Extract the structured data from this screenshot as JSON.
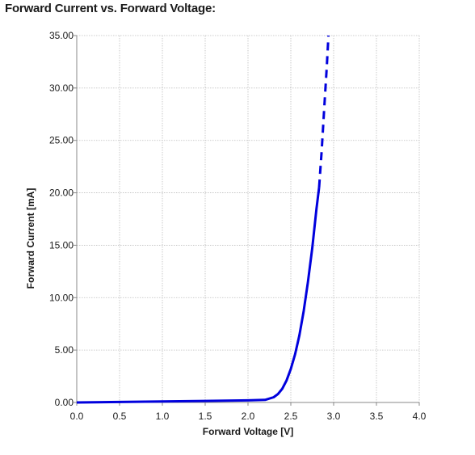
{
  "chart_data": {
    "type": "line",
    "title": "Forward Current vs. Forward Voltage:",
    "xlabel": "Forward Voltage [V]",
    "ylabel": "Forward Current [mA]",
    "xlim": [
      0,
      4.0
    ],
    "ylim": [
      0,
      35
    ],
    "x_ticks": [
      "0.0",
      "0.5",
      "1.0",
      "1.5",
      "2.0",
      "2.5",
      "3.0",
      "3.5",
      "4.0"
    ],
    "y_ticks": [
      "0.00",
      "5.00",
      "10.00",
      "15.00",
      "20.00",
      "25.00",
      "30.00",
      "35.00"
    ],
    "grid": true,
    "series": [
      {
        "style": "solid",
        "color": "#0000dd",
        "x": [
          0.0,
          0.5,
          1.0,
          1.5,
          2.0,
          2.2,
          2.3,
          2.35,
          2.4,
          2.45,
          2.5,
          2.55,
          2.6,
          2.65,
          2.7,
          2.75,
          2.8,
          2.83
        ],
        "y": [
          0.0,
          0.05,
          0.1,
          0.15,
          0.2,
          0.25,
          0.5,
          0.8,
          1.3,
          2.1,
          3.2,
          4.6,
          6.4,
          8.7,
          11.5,
          14.7,
          18.5,
          20.5
        ]
      },
      {
        "style": "dashed",
        "color": "#0000dd",
        "x": [
          2.83,
          2.86,
          2.89,
          2.92,
          2.94
        ],
        "y": [
          20.5,
          24.0,
          28.0,
          32.0,
          35.0
        ]
      }
    ]
  }
}
